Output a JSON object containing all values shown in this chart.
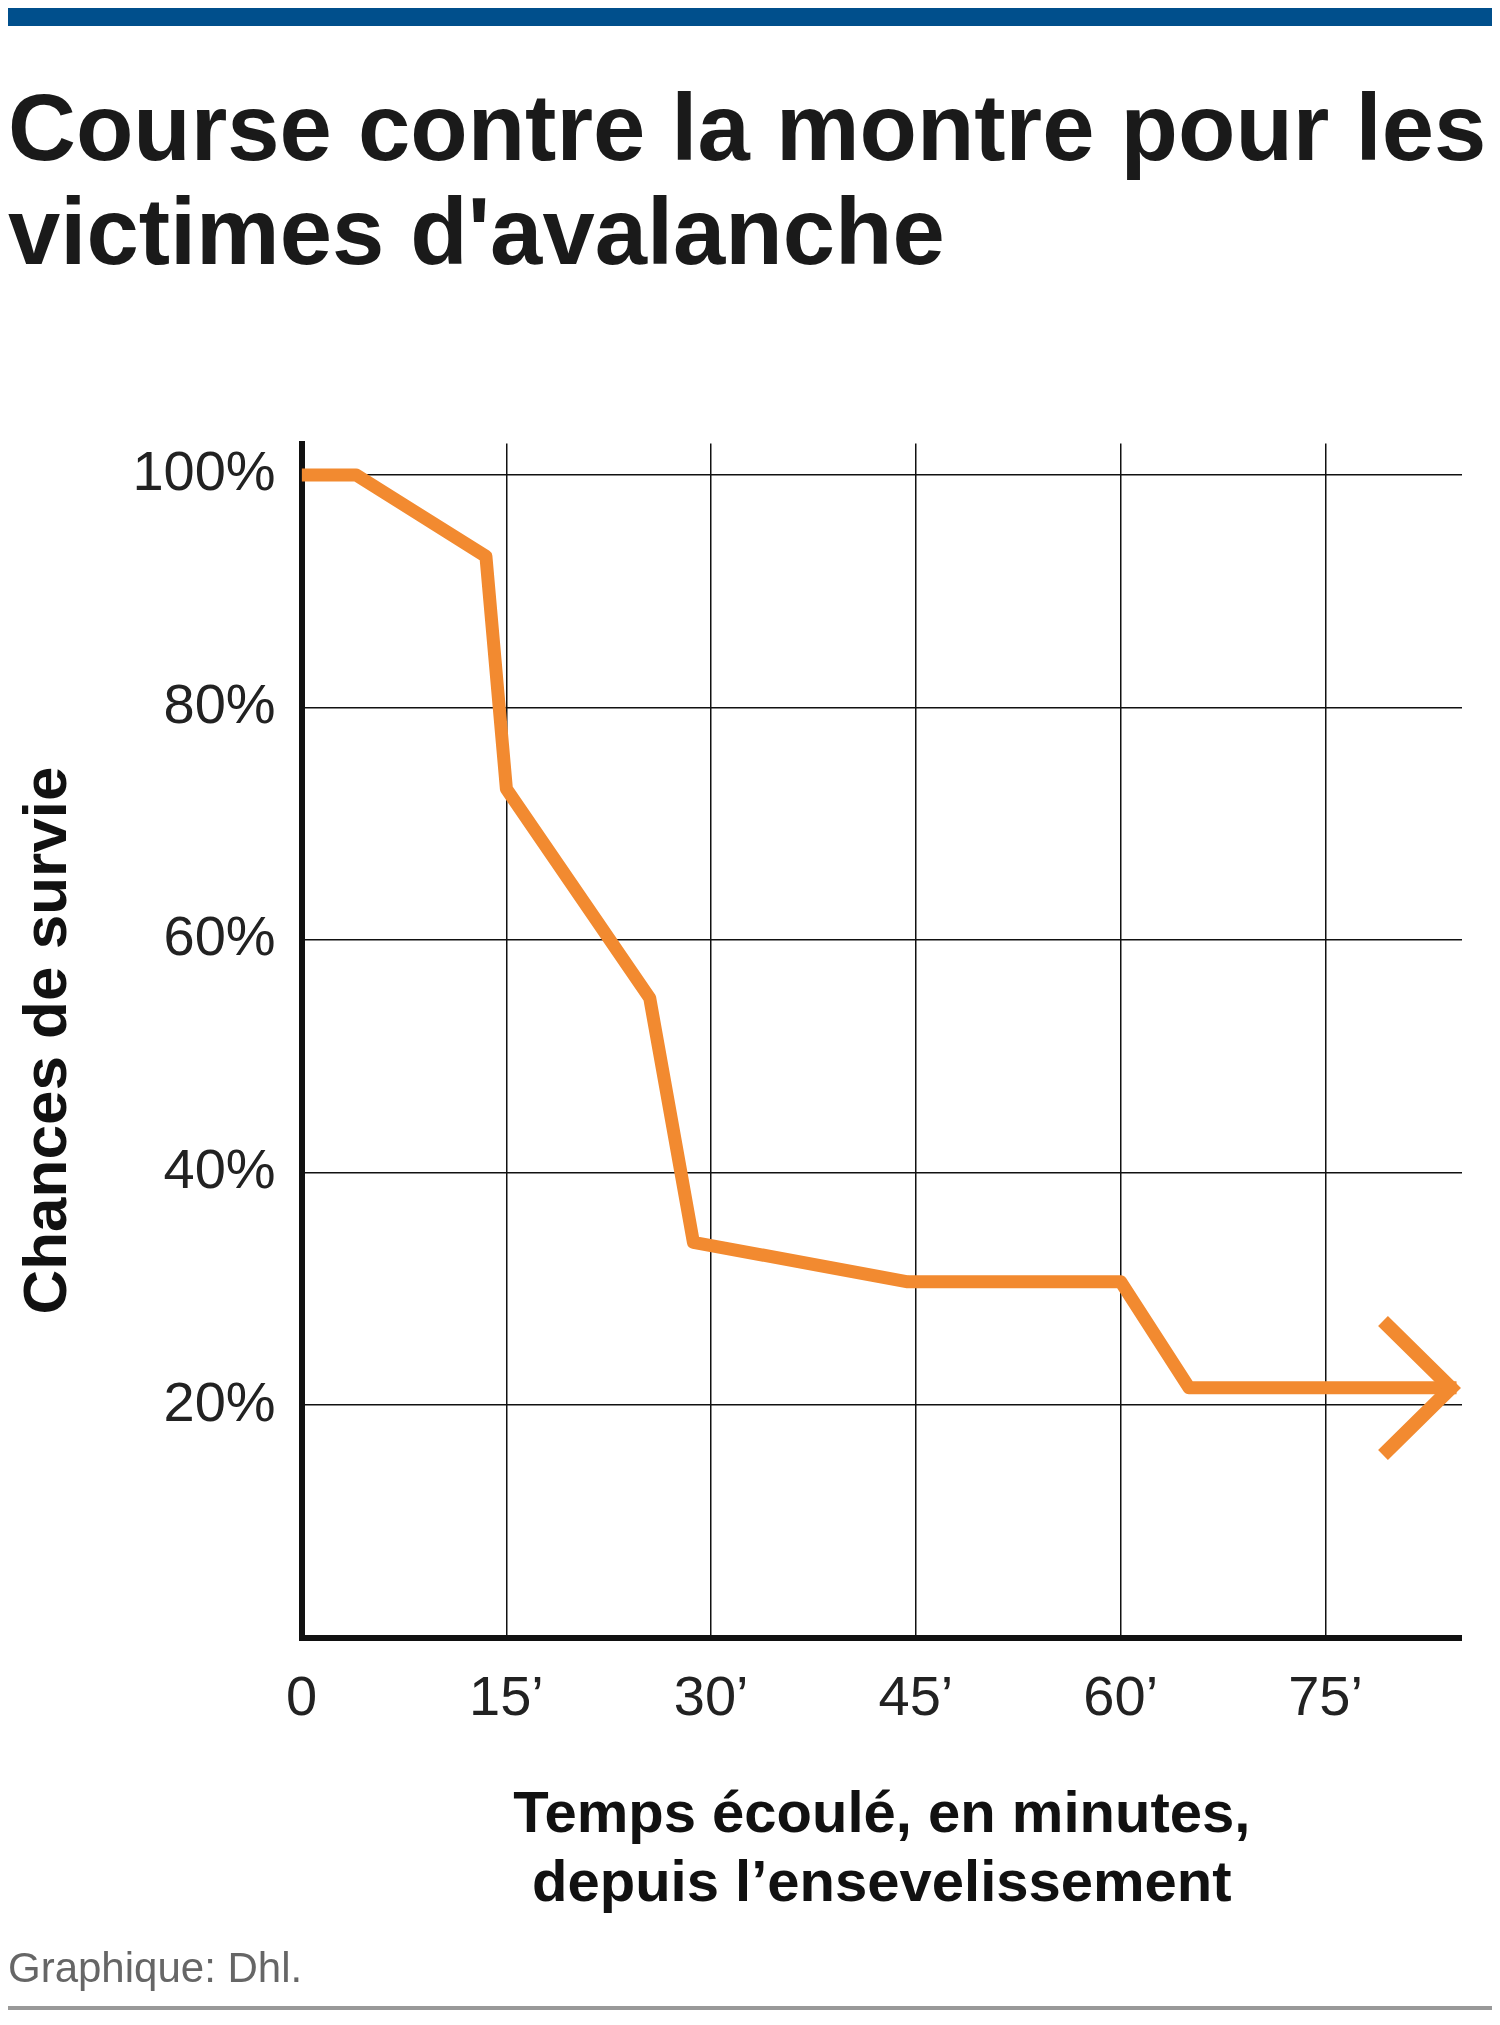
{
  "chart_data": {
    "type": "line",
    "title": "Course contre la montre pour les victimes d'avalanche",
    "xlabel": "Temps écoulé, en minutes, depuis l’ensevelissement",
    "ylabel": "Chances de survie",
    "x": [
      0,
      4,
      13.5,
      15,
      25.5,
      28.7,
      44.4,
      60,
      65,
      84.6
    ],
    "series": [
      {
        "color": "#f28a30",
        "values": [
          100,
          100,
          93,
          73,
          55,
          34,
          30.6,
          30.6,
          21.5,
          21.5
        ]
      }
    ],
    "xlim": [
      0,
      85
    ],
    "xticks": [
      0,
      {
        "value": 15,
        "label": "15’"
      },
      {
        "value": 30,
        "label": "30’"
      },
      {
        "value": 45,
        "label": "45’"
      },
      {
        "value": 60,
        "label": "60’"
      },
      {
        "value": 75,
        "label": "75’"
      }
    ],
    "ylim": [
      0,
      102.7
    ],
    "yticks": [
      {
        "value": 20,
        "label": "20%"
      },
      {
        "value": 40,
        "label": "40%"
      },
      {
        "value": 60,
        "label": "60%"
      },
      {
        "value": 80,
        "label": "80%"
      },
      {
        "value": 100,
        "label": "100%"
      }
    ],
    "grid": true,
    "legend": false,
    "marker": "none",
    "line_style": "solid",
    "annotations": [
      "Graphique: Dhl."
    ]
  }
}
